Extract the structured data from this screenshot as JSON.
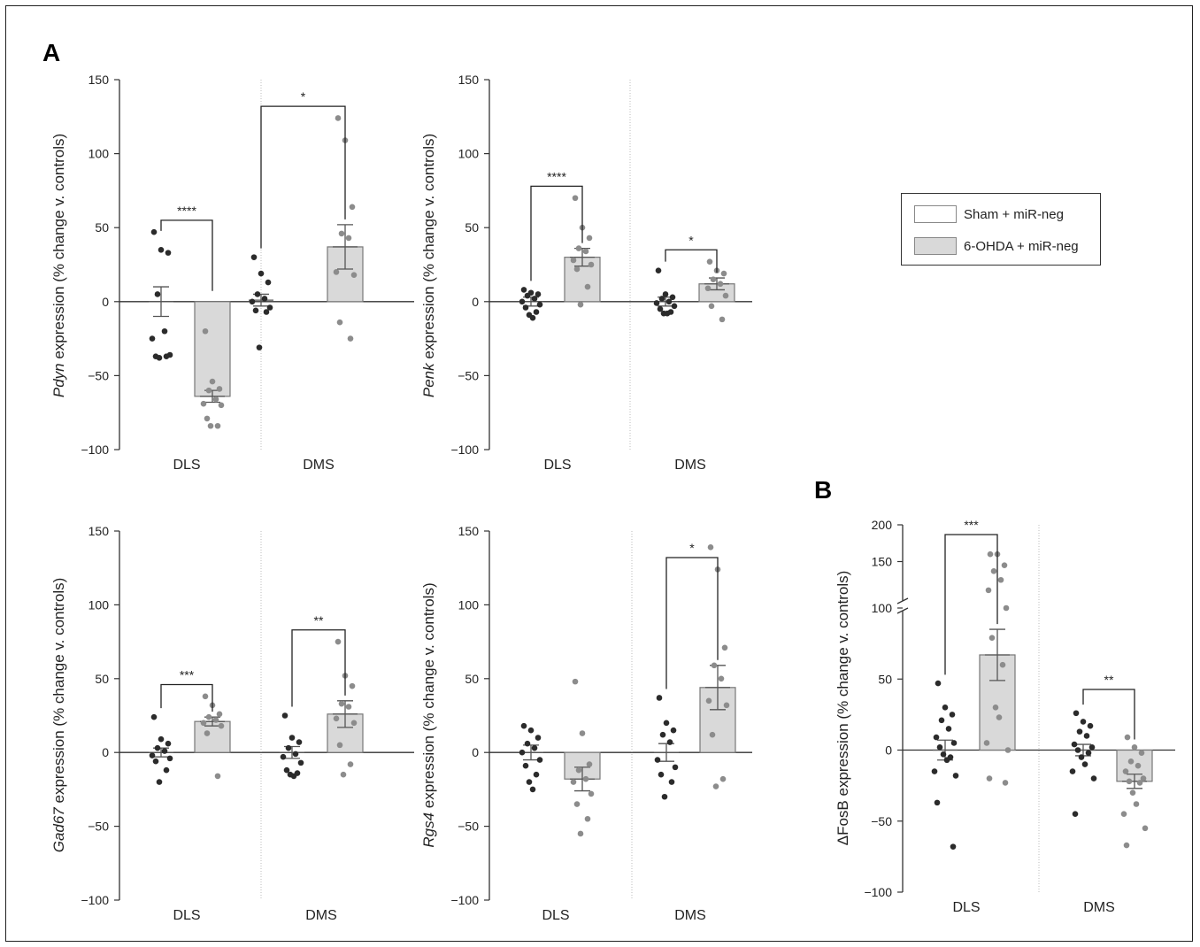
{
  "panel_labels": {
    "A": "A",
    "B": "B"
  },
  "legend": {
    "items": [
      {
        "label": "Sham + miR-neg",
        "color": "#ffffff"
      },
      {
        "label": "6-OHDA + miR-neg",
        "color": "#d9d9d9"
      }
    ]
  },
  "colors": {
    "sham_dot": "#2b2b2b",
    "ohda_dot": "#8c8c8c",
    "bar_fill": "#d9d9d9",
    "bar_edge": "#777777",
    "axis": "#333333"
  },
  "chart_data": [
    {
      "type": "bar",
      "gene": "Pdyn",
      "ylabel_rest": " expression (% change v. controls)",
      "ylim": [
        -100,
        150
      ],
      "yticks": [
        "−100",
        "−50",
        "0",
        "50",
        "100",
        "150"
      ],
      "categories": [
        "DLS",
        "DMS"
      ],
      "series": [
        {
          "means": [
            0,
            -64
          ],
          "sem": [
            10,
            4
          ],
          "points": [
            [
              47,
              35,
              33,
              5,
              -20,
              -25,
              -36,
              -37,
              -37,
              -38
            ],
            [
              -20,
              -54,
              -59,
              -60,
              -66,
              -69,
              -70,
              -79,
              -84,
              -84
            ]
          ]
        },
        {
          "means": [
            1,
            37
          ],
          "sem": [
            4,
            15
          ],
          "points": [
            [
              30,
              19,
              13,
              5,
              2,
              0,
              -4,
              -6,
              -7,
              -31
            ],
            [
              124,
              109,
              64,
              46,
              43,
              20,
              18,
              -14,
              -25
            ]
          ]
        }
      ],
      "significance": [
        "****",
        "*"
      ]
    },
    {
      "type": "bar",
      "gene": "Penk",
      "ylabel_rest": " expression (% change v. controls)",
      "ylim": [
        -100,
        150
      ],
      "yticks": [
        "−100",
        "−50",
        "0",
        "50",
        "100",
        "150"
      ],
      "categories": [
        "DLS",
        "DMS"
      ],
      "series": [
        {
          "means": [
            0,
            30
          ],
          "sem": [
            3,
            6
          ],
          "points": [
            [
              8,
              6,
              5,
              4,
              2,
              0,
              -2,
              -4,
              -7,
              -9,
              -11
            ],
            [
              70,
              50,
              43,
              36,
              34,
              28,
              25,
              22,
              10,
              -2
            ]
          ]
        },
        {
          "means": [
            0,
            12
          ],
          "sem": [
            3,
            4
          ],
          "points": [
            [
              21,
              5,
              3,
              2,
              0,
              -1,
              -3,
              -5,
              -7,
              -8,
              -8
            ],
            [
              27,
              21,
              19,
              15,
              12,
              9,
              4,
              -3,
              -12
            ]
          ]
        }
      ],
      "significance": [
        "****",
        "*"
      ]
    },
    {
      "type": "bar",
      "gene": "Gad67",
      "ylabel_rest": " expression (% change v. controls)",
      "ylim": [
        -100,
        150
      ],
      "yticks": [
        "−100",
        "−50",
        "0",
        "50",
        "100",
        "150"
      ],
      "categories": [
        "DLS",
        "DMS"
      ],
      "series": [
        {
          "means": [
            0,
            21
          ],
          "sem": [
            3,
            3
          ],
          "points": [
            [
              24,
              9,
              6,
              3,
              1,
              -2,
              -4,
              -6,
              -12,
              -20
            ],
            [
              38,
              32,
              26,
              24,
              22,
              20,
              18,
              13,
              -16
            ]
          ]
        },
        {
          "means": [
            0,
            26
          ],
          "sem": [
            4,
            9
          ],
          "points": [
            [
              25,
              10,
              7,
              3,
              -1,
              -3,
              -7,
              -12,
              -14,
              -15,
              -16
            ],
            [
              75,
              52,
              45,
              33,
              31,
              23,
              20,
              5,
              -8,
              -15
            ]
          ]
        }
      ],
      "significance": [
        "***",
        "**"
      ]
    },
    {
      "type": "bar",
      "gene": "Rgs4",
      "ylabel_rest": " expression (% change v. controls)",
      "ylim": [
        -100,
        150
      ],
      "yticks": [
        "−100",
        "−50",
        "0",
        "50",
        "100",
        "150"
      ],
      "categories": [
        "DLS",
        "DMS"
      ],
      "series": [
        {
          "means": [
            0,
            -18
          ],
          "sem": [
            5,
            8
          ],
          "points": [
            [
              18,
              15,
              10,
              6,
              3,
              0,
              -5,
              -9,
              -15,
              -20,
              -25
            ],
            [
              48,
              13,
              -8,
              -12,
              -18,
              -20,
              -28,
              -35,
              -45,
              -55
            ]
          ]
        },
        {
          "means": [
            0,
            44
          ],
          "sem": [
            6,
            15
          ],
          "points": [
            [
              37,
              20,
              15,
              12,
              7,
              -5,
              -10,
              -15,
              -20,
              -30
            ],
            [
              139,
              124,
              71,
              59,
              50,
              35,
              32,
              12,
              -18,
              -23
            ]
          ]
        }
      ],
      "significance": [
        "",
        "*"
      ]
    },
    {
      "type": "bar",
      "gene": "ΔFosB",
      "ylabel_rest": " expression (% change v. controls)",
      "ylim": [
        -100,
        200
      ],
      "axis_break": [
        100,
        140
      ],
      "yticks": [
        "−100",
        "−50",
        "0",
        "50",
        "100",
        "150",
        "200"
      ],
      "categories": [
        "DLS",
        "DMS"
      ],
      "series": [
        {
          "means": [
            0,
            67
          ],
          "sem": [
            7,
            18
          ],
          "points": [
            [
              47,
              30,
              25,
              21,
              15,
              9,
              5,
              2,
              -5,
              -3,
              -7,
              -15,
              -18,
              -37,
              -68
            ],
            [
              160,
              160,
              145,
              137,
              125,
              111,
              100,
              79,
              60,
              30,
              23,
              5,
              0,
              -20,
              -23
            ]
          ]
        },
        {
          "means": [
            0,
            -22
          ],
          "sem": [
            4,
            5
          ],
          "points": [
            [
              26,
              20,
              17,
              13,
              10,
              4,
              2,
              0,
              -2,
              -5,
              -10,
              -15,
              -20,
              -45
            ],
            [
              9,
              2,
              -2,
              -8,
              -11,
              -15,
              -20,
              -22,
              -23,
              -30,
              -38,
              -45,
              -55,
              -67
            ]
          ]
        }
      ],
      "significance": [
        "***",
        "**"
      ]
    }
  ]
}
